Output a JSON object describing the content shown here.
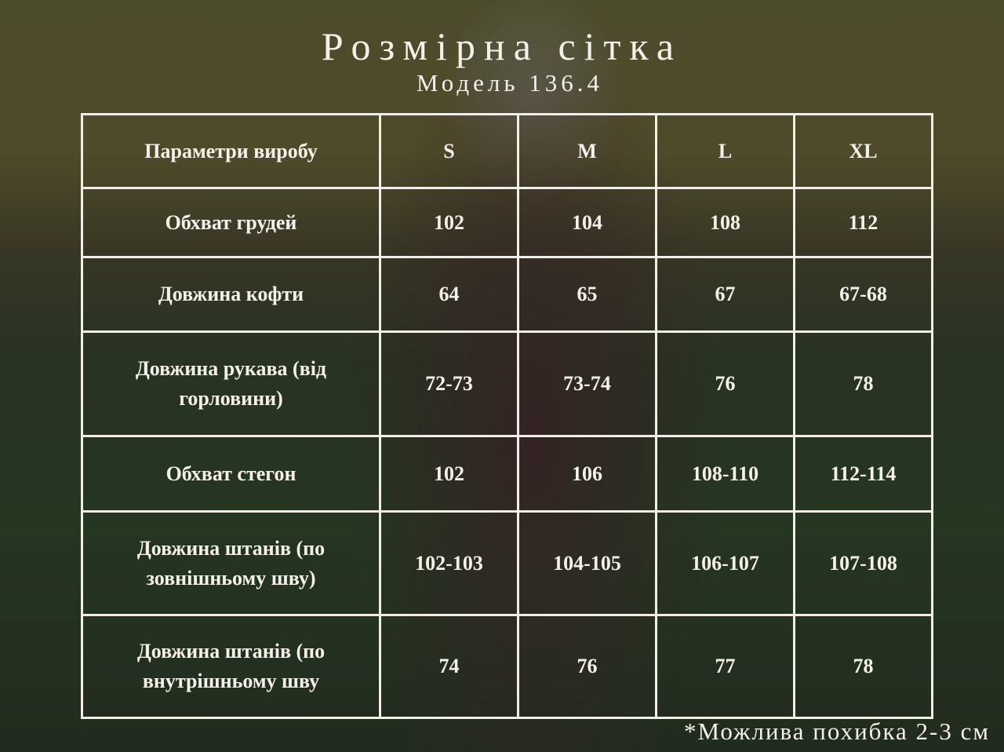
{
  "title": "Розмірна сітка",
  "subtitle": "Модель 136.4",
  "table": {
    "headers": [
      "Параметри виробу",
      "S",
      "M",
      "L",
      "XL"
    ],
    "rows": [
      {
        "param": "Обхват грудей",
        "values": [
          "102",
          "104",
          "108",
          "112"
        ]
      },
      {
        "param": "Довжина кофти",
        "values": [
          "64",
          "65",
          "67",
          "67-68"
        ]
      },
      {
        "param": "Довжина рукава (від горловини)",
        "values": [
          "72-73",
          "73-74",
          "76",
          "78"
        ]
      },
      {
        "param": "Обхват стегон",
        "values": [
          "102",
          "106",
          "108-110",
          "112-114"
        ]
      },
      {
        "param": "Довжина штанів (по зовнішньому шву)",
        "values": [
          "102-103",
          "104-105",
          "106-107",
          "107-108"
        ]
      },
      {
        "param": "Довжина штанів (по внутрішньому шву",
        "values": [
          "74",
          "76",
          "77",
          "78"
        ]
      }
    ]
  },
  "note": "*Можлива похибка 2-3 см"
}
